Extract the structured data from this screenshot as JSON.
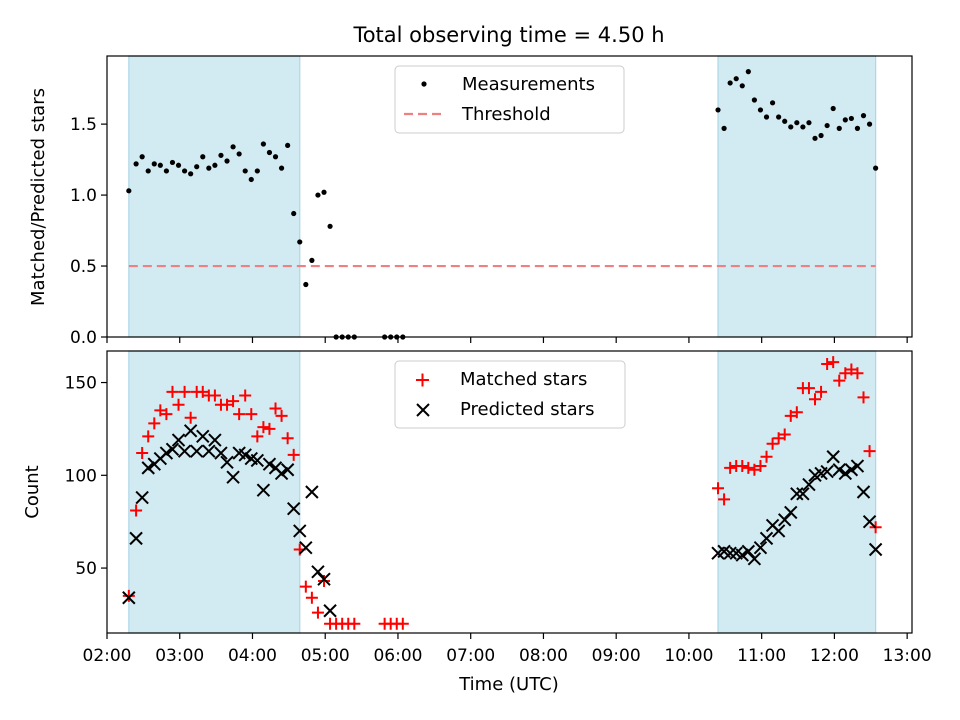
{
  "title": "Total observing time = 4.50 h",
  "colors": {
    "shade": "#add8e6",
    "measurement": "#000000",
    "threshold": "#f08080",
    "matched": "#ff0000",
    "predicted": "#000000"
  },
  "chart_data": [
    {
      "type": "scatter",
      "title": "Total observing time = 4.50 h",
      "xlabel": "",
      "ylabel": "Matched/Predicted stars",
      "xlim": [
        "02:00",
        "13:04"
      ],
      "ylim": [
        0,
        1.98
      ],
      "yticks": [
        "0.0",
        "0.5",
        "1.0",
        "1.5"
      ],
      "legend": [
        "Measurements",
        "Threshold"
      ],
      "legend_position": "top-center",
      "threshold": 0.5,
      "shaded_intervals": [
        [
          "02:18",
          "04:39"
        ],
        [
          "10:24",
          "12:34"
        ]
      ],
      "series": [
        {
          "name": "Measurements",
          "marker": "dot",
          "points": [
            [
              "02:18",
              1.03
            ],
            [
              "02:24",
              1.22
            ],
            [
              "02:29",
              1.27
            ],
            [
              "02:34",
              1.17
            ],
            [
              "02:39",
              1.22
            ],
            [
              "02:44",
              1.21
            ],
            [
              "02:49",
              1.17
            ],
            [
              "02:54",
              1.23
            ],
            [
              "02:59",
              1.21
            ],
            [
              "03:04",
              1.17
            ],
            [
              "03:09",
              1.15
            ],
            [
              "03:14",
              1.2
            ],
            [
              "03:19",
              1.27
            ],
            [
              "03:24",
              1.19
            ],
            [
              "03:29",
              1.21
            ],
            [
              "03:34",
              1.28
            ],
            [
              "03:39",
              1.24
            ],
            [
              "03:44",
              1.34
            ],
            [
              "03:49",
              1.29
            ],
            [
              "03:54",
              1.17
            ],
            [
              "03:59",
              1.11
            ],
            [
              "04:04",
              1.17
            ],
            [
              "04:09",
              1.36
            ],
            [
              "04:14",
              1.3
            ],
            [
              "04:19",
              1.27
            ],
            [
              "04:24",
              1.19
            ],
            [
              "04:29",
              1.35
            ],
            [
              "04:34",
              0.87
            ],
            [
              "04:39",
              0.67
            ],
            [
              "04:44",
              0.37
            ],
            [
              "04:49",
              0.54
            ],
            [
              "04:54",
              1.0
            ],
            [
              "04:59",
              1.02
            ],
            [
              "05:04",
              0.78
            ],
            [
              "05:09",
              0.0
            ],
            [
              "05:14",
              0.0
            ],
            [
              "05:19",
              0.0
            ],
            [
              "05:24",
              0.0
            ],
            [
              "05:49",
              0.0
            ],
            [
              "05:54",
              0.0
            ],
            [
              "05:59",
              0.0
            ],
            [
              "06:04",
              0.0
            ],
            [
              "10:24",
              1.6
            ],
            [
              "10:29",
              1.47
            ],
            [
              "10:34",
              1.79
            ],
            [
              "10:39",
              1.82
            ],
            [
              "10:44",
              1.77
            ],
            [
              "10:49",
              1.87
            ],
            [
              "10:54",
              1.67
            ],
            [
              "10:59",
              1.6
            ],
            [
              "11:04",
              1.55
            ],
            [
              "11:09",
              1.65
            ],
            [
              "11:14",
              1.55
            ],
            [
              "11:19",
              1.52
            ],
            [
              "11:24",
              1.48
            ],
            [
              "11:29",
              1.51
            ],
            [
              "11:34",
              1.48
            ],
            [
              "11:39",
              1.51
            ],
            [
              "11:44",
              1.4
            ],
            [
              "11:49",
              1.42
            ],
            [
              "11:54",
              1.49
            ],
            [
              "11:59",
              1.61
            ],
            [
              "12:04",
              1.47
            ],
            [
              "12:09",
              1.53
            ],
            [
              "12:14",
              1.54
            ],
            [
              "12:19",
              1.47
            ],
            [
              "12:24",
              1.56
            ],
            [
              "12:29",
              1.5
            ],
            [
              "12:34",
              1.19
            ]
          ]
        }
      ]
    },
    {
      "type": "scatter",
      "title": "",
      "xlabel": "Time (UTC)",
      "ylabel": "Count",
      "xlim": [
        "02:00",
        "13:04"
      ],
      "ylim": [
        15,
        167
      ],
      "xticks": [
        "02:00",
        "03:00",
        "04:00",
        "05:00",
        "06:00",
        "07:00",
        "08:00",
        "09:00",
        "10:00",
        "11:00",
        "12:00",
        "13:00"
      ],
      "yticks": [
        "50",
        "100",
        "150"
      ],
      "legend": [
        "Matched stars",
        "Predicted stars"
      ],
      "legend_position": "top-center",
      "shaded_intervals": [
        [
          "02:18",
          "04:39"
        ],
        [
          "10:24",
          "12:34"
        ]
      ],
      "series": [
        {
          "name": "Matched stars",
          "marker": "plus",
          "points": [
            [
              "02:18",
              35
            ],
            [
              "02:24",
              81
            ],
            [
              "02:29",
              112
            ],
            [
              "02:34",
              121
            ],
            [
              "02:39",
              128
            ],
            [
              "02:44",
              135
            ],
            [
              "02:49",
              133
            ],
            [
              "02:54",
              145
            ],
            [
              "02:59",
              138
            ],
            [
              "03:04",
              145
            ],
            [
              "03:09",
              131
            ],
            [
              "03:14",
              145
            ],
            [
              "03:19",
              145
            ],
            [
              "03:24",
              143
            ],
            [
              "03:29",
              143
            ],
            [
              "03:34",
              138
            ],
            [
              "03:39",
              138
            ],
            [
              "03:44",
              140
            ],
            [
              "03:49",
              133
            ],
            [
              "03:54",
              143
            ],
            [
              "03:59",
              133
            ],
            [
              "04:04",
              121
            ],
            [
              "04:09",
              126
            ],
            [
              "04:14",
              125
            ],
            [
              "04:19",
              136
            ],
            [
              "04:24",
              132
            ],
            [
              "04:29",
              120
            ],
            [
              "04:34",
              111
            ],
            [
              "04:39",
              60
            ],
            [
              "04:44",
              40
            ],
            [
              "04:49",
              34
            ],
            [
              "04:54",
              26
            ],
            [
              "04:59",
              43
            ],
            [
              "05:04",
              20
            ],
            [
              "05:09",
              20
            ],
            [
              "05:14",
              20
            ],
            [
              "05:19",
              20
            ],
            [
              "05:24",
              20
            ],
            [
              "05:49",
              20
            ],
            [
              "05:54",
              20
            ],
            [
              "05:59",
              20
            ],
            [
              "06:04",
              20
            ],
            [
              "10:24",
              93
            ],
            [
              "10:29",
              87
            ],
            [
              "10:34",
              104
            ],
            [
              "10:39",
              105
            ],
            [
              "10:44",
              105
            ],
            [
              "10:49",
              104
            ],
            [
              "10:54",
              103
            ],
            [
              "10:59",
              105
            ],
            [
              "11:04",
              110
            ],
            [
              "11:09",
              117
            ],
            [
              "11:14",
              120
            ],
            [
              "11:19",
              122
            ],
            [
              "11:24",
              132
            ],
            [
              "11:29",
              134
            ],
            [
              "11:34",
              147
            ],
            [
              "11:39",
              147
            ],
            [
              "11:44",
              141
            ],
            [
              "11:49",
              145
            ],
            [
              "11:54",
              160
            ],
            [
              "11:59",
              161
            ],
            [
              "12:04",
              151
            ],
            [
              "12:09",
              155
            ],
            [
              "12:14",
              157
            ],
            [
              "12:19",
              155
            ],
            [
              "12:24",
              142
            ],
            [
              "12:29",
              113
            ],
            [
              "12:34",
              72
            ]
          ]
        },
        {
          "name": "Predicted stars",
          "marker": "cross",
          "points": [
            [
              "02:18",
              34
            ],
            [
              "02:24",
              66
            ],
            [
              "02:29",
              88
            ],
            [
              "02:34",
              104
            ],
            [
              "02:39",
              106
            ],
            [
              "02:44",
              109
            ],
            [
              "02:49",
              112
            ],
            [
              "02:54",
              114
            ],
            [
              "02:59",
              119
            ],
            [
              "03:04",
              113
            ],
            [
              "03:09",
              124
            ],
            [
              "03:14",
              113
            ],
            [
              "03:19",
              121
            ],
            [
              "03:24",
              113
            ],
            [
              "03:29",
              119
            ],
            [
              "03:34",
              112
            ],
            [
              "03:39",
              107
            ],
            [
              "03:44",
              99
            ],
            [
              "03:49",
              112
            ],
            [
              "03:54",
              111
            ],
            [
              "03:59",
              109
            ],
            [
              "04:04",
              108
            ],
            [
              "04:09",
              92
            ],
            [
              "04:14",
              106
            ],
            [
              "04:19",
              104
            ],
            [
              "04:24",
              101
            ],
            [
              "04:29",
              103
            ],
            [
              "04:34",
              82
            ],
            [
              "04:39",
              70
            ],
            [
              "04:44",
              61
            ],
            [
              "04:49",
              91
            ],
            [
              "04:54",
              48
            ],
            [
              "04:59",
              44
            ],
            [
              "05:04",
              27
            ],
            [
              "10:24",
              58
            ],
            [
              "10:29",
              59
            ],
            [
              "10:34",
              58
            ],
            [
              "10:39",
              58
            ],
            [
              "10:44",
              57
            ],
            [
              "10:49",
              59
            ],
            [
              "10:54",
              55
            ],
            [
              "10:59",
              61
            ],
            [
              "11:04",
              66
            ],
            [
              "11:09",
              73
            ],
            [
              "11:14",
              70
            ],
            [
              "11:19",
              76
            ],
            [
              "11:24",
              80
            ],
            [
              "11:29",
              90
            ],
            [
              "11:34",
              90
            ],
            [
              "11:39",
              95
            ],
            [
              "11:44",
              100
            ],
            [
              "11:49",
              101
            ],
            [
              "11:54",
              102
            ],
            [
              "11:59",
              110
            ],
            [
              "12:04",
              103
            ],
            [
              "12:09",
              101
            ],
            [
              "12:14",
              103
            ],
            [
              "12:19",
              105
            ],
            [
              "12:24",
              91
            ],
            [
              "12:29",
              75
            ],
            [
              "12:34",
              60
            ]
          ]
        }
      ]
    }
  ]
}
